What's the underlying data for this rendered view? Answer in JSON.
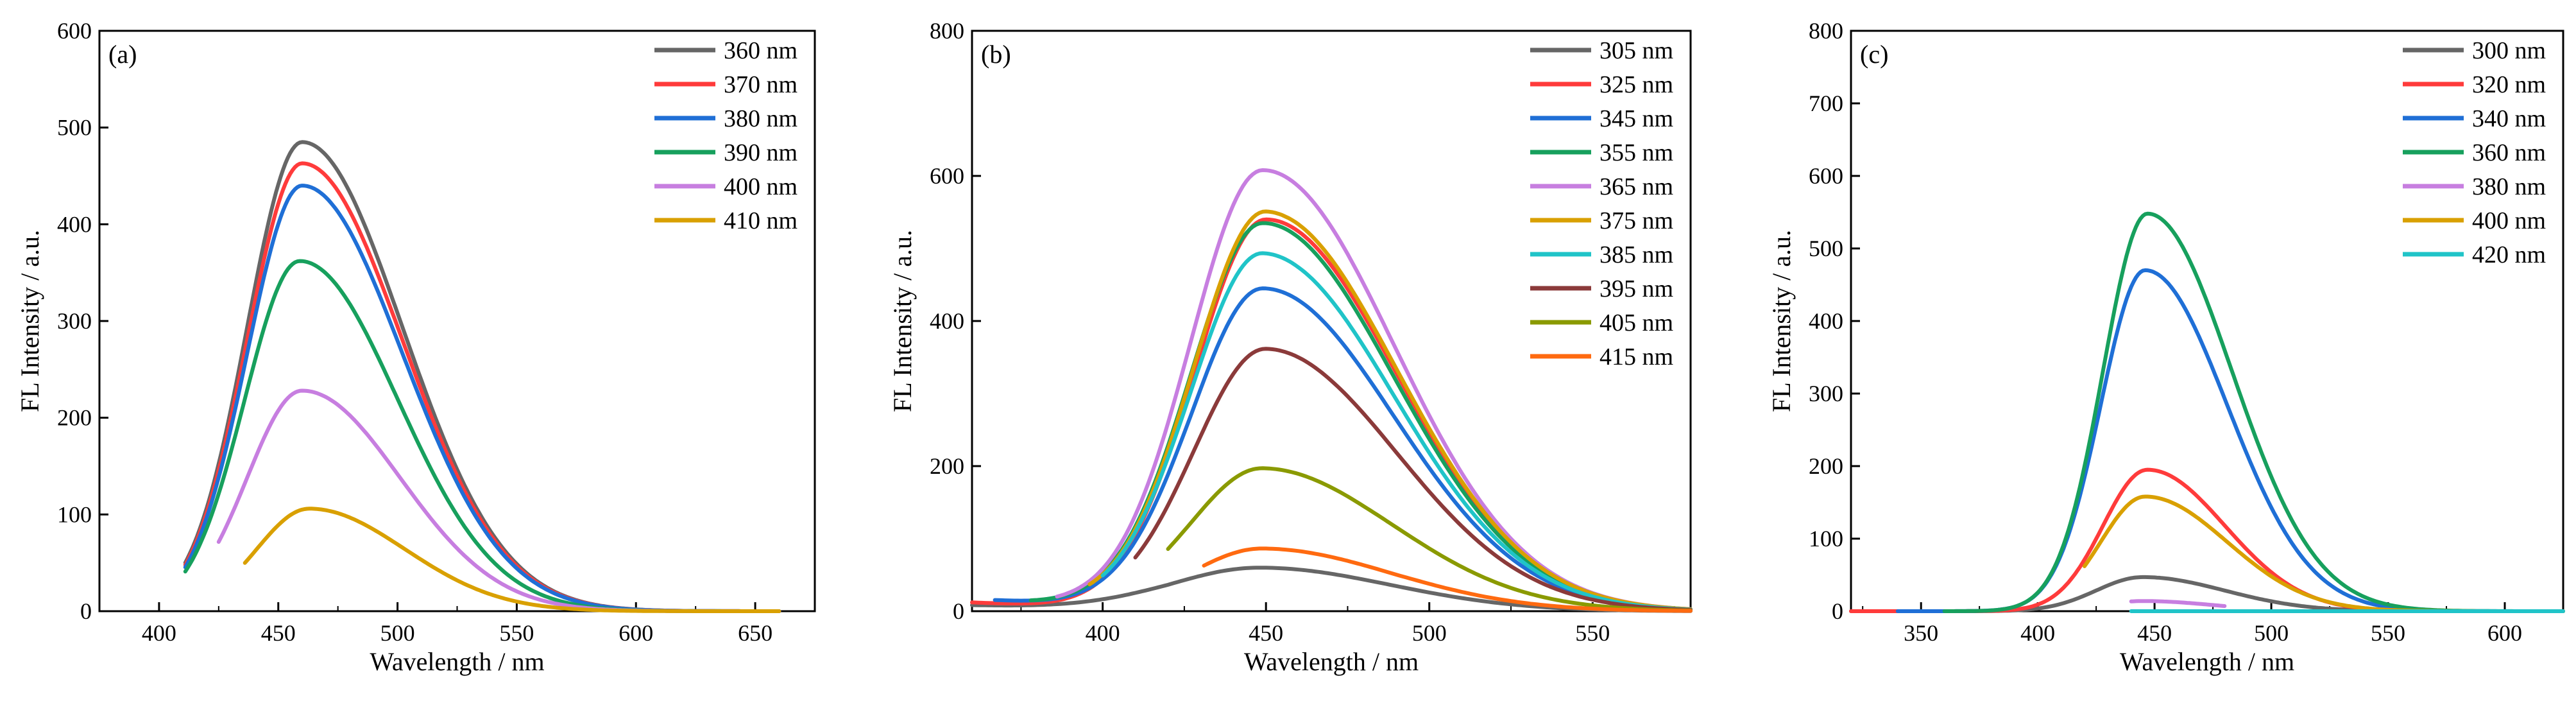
{
  "chart_data": [
    {
      "id": "a",
      "type": "line",
      "panel_label": "(a)",
      "xlabel": "Wavelength / nm",
      "ylabel": "FL Intensity / a.u.",
      "xlim": [
        375,
        675
      ],
      "ylim": [
        0,
        600
      ],
      "x_ticks": [
        400,
        450,
        500,
        550,
        600,
        650
      ],
      "y_ticks": [
        0,
        100,
        200,
        300,
        400,
        500,
        600
      ],
      "legend_position": "top-right",
      "series": [
        {
          "name": "360 nm",
          "color": "#666666",
          "start": 411,
          "end": 660,
          "peak": 460,
          "amp": 485,
          "sl": 23,
          "sr": 42,
          "base": 0
        },
        {
          "name": "370 nm",
          "color": "#ff3b3b",
          "start": 411,
          "end": 660,
          "peak": 460,
          "amp": 463,
          "sl": 23,
          "sr": 42,
          "base": 0
        },
        {
          "name": "380 nm",
          "color": "#1f6fd6",
          "start": 411,
          "end": 660,
          "peak": 460,
          "amp": 440,
          "sl": 23,
          "sr": 42,
          "base": 0
        },
        {
          "name": "390 nm",
          "color": "#17a05d",
          "start": 411,
          "end": 660,
          "peak": 459,
          "amp": 362,
          "sl": 23,
          "sr": 41,
          "base": 0
        },
        {
          "name": "400 nm",
          "color": "#c77ee0",
          "start": 425,
          "end": 660,
          "peak": 460,
          "amp": 228,
          "sl": 23,
          "sr": 41,
          "base": 0
        },
        {
          "name": "410 nm",
          "color": "#d9a000",
          "start": 436,
          "end": 660,
          "peak": 463,
          "amp": 106,
          "sl": 22,
          "sr": 40,
          "base": 0
        }
      ]
    },
    {
      "id": "b",
      "type": "line",
      "panel_label": "(b)",
      "xlabel": "Wavelength / nm",
      "ylabel": "FL Intensity / a.u.",
      "xlim": [
        360,
        580
      ],
      "ylim": [
        0,
        800
      ],
      "x_ticks": [
        400,
        450,
        500,
        550
      ],
      "y_ticks": [
        0,
        200,
        400,
        600,
        800
      ],
      "legend_position": "top-right",
      "series": [
        {
          "name": "305 nm",
          "color": "#666666",
          "start": 360,
          "end": 580,
          "peak": 448,
          "amp": 60,
          "sl": 28,
          "sr": 40,
          "base": 8
        },
        {
          "name": "325 nm",
          "color": "#ff3b3b",
          "start": 360,
          "end": 580,
          "peak": 450,
          "amp": 540,
          "sl": 22,
          "sr": 40,
          "base": 12
        },
        {
          "name": "345 nm",
          "color": "#1f6fd6",
          "start": 367,
          "end": 580,
          "peak": 449,
          "amp": 445,
          "sl": 22,
          "sr": 40,
          "base": 15
        },
        {
          "name": "355 nm",
          "color": "#17a05d",
          "start": 378,
          "end": 580,
          "peak": 449,
          "amp": 535,
          "sl": 22,
          "sr": 40,
          "base": 12
        },
        {
          "name": "365 nm",
          "color": "#c77ee0",
          "start": 386,
          "end": 580,
          "peak": 449,
          "amp": 608,
          "sl": 22,
          "sr": 40,
          "base": 10
        },
        {
          "name": "375 nm",
          "color": "#d9a000",
          "start": 396,
          "end": 580,
          "peak": 450,
          "amp": 550,
          "sl": 22,
          "sr": 40,
          "base": 10
        },
        {
          "name": "385 nm",
          "color": "#20c4c8",
          "start": 400,
          "end": 580,
          "peak": 449,
          "amp": 492,
          "sl": 22,
          "sr": 40,
          "base": 8
        },
        {
          "name": "395 nm",
          "color": "#8b3a3a",
          "start": 410,
          "end": 580,
          "peak": 450,
          "amp": 360,
          "sl": 22,
          "sr": 40,
          "base": 5
        },
        {
          "name": "405 nm",
          "color": "#8a9a00",
          "start": 420,
          "end": 580,
          "peak": 449,
          "amp": 195,
          "sl": 22,
          "sr": 40,
          "base": 4
        },
        {
          "name": "415 nm",
          "color": "#ff6a10",
          "start": 431,
          "end": 580,
          "peak": 449,
          "amp": 85,
          "sl": 22,
          "sr": 40,
          "base": 2
        }
      ]
    },
    {
      "id": "c",
      "type": "line",
      "panel_label": "(c)",
      "xlabel": "Wavelength / nm",
      "ylabel": "FL Intensity / a.u.",
      "xlim": [
        320,
        625
      ],
      "ylim": [
        0,
        800
      ],
      "x_ticks": [
        350,
        400,
        450,
        500,
        550,
        600
      ],
      "y_ticks": [
        0,
        100,
        200,
        300,
        400,
        500,
        600,
        700,
        800
      ],
      "legend_position": "top-right",
      "series": [
        {
          "name": "300 nm",
          "color": "#666666",
          "start": 320,
          "end": 600,
          "peak": 445,
          "amp": 47,
          "sl": 20,
          "sr": 35,
          "base": 0
        },
        {
          "name": "320 nm",
          "color": "#ff3b3b",
          "start": 320,
          "end": 625,
          "peak": 447,
          "amp": 195,
          "sl": 19,
          "sr": 33,
          "base": 0
        },
        {
          "name": "340 nm",
          "color": "#1f6fd6",
          "start": 340,
          "end": 625,
          "peak": 446,
          "amp": 470,
          "sl": 19,
          "sr": 35,
          "base": 0
        },
        {
          "name": "360 nm",
          "color": "#17a05d",
          "start": 360,
          "end": 625,
          "peak": 447,
          "amp": 548,
          "sl": 19,
          "sr": 36,
          "base": 0
        },
        {
          "name": "380 nm",
          "color": "#c77ee0",
          "start": 440,
          "end": 480,
          "peak": 445,
          "amp": 14,
          "sl": 18,
          "sr": 30,
          "base": 0
        },
        {
          "name": "400 nm",
          "color": "#d9a000",
          "start": 420,
          "end": 625,
          "peak": 446,
          "amp": 158,
          "sl": 19,
          "sr": 35,
          "base": 0
        },
        {
          "name": "420 nm",
          "color": "#20c4c8",
          "start": 440,
          "end": 625,
          "peak": 447,
          "amp": 0,
          "sl": 19,
          "sr": 35,
          "base": 0
        }
      ]
    }
  ]
}
